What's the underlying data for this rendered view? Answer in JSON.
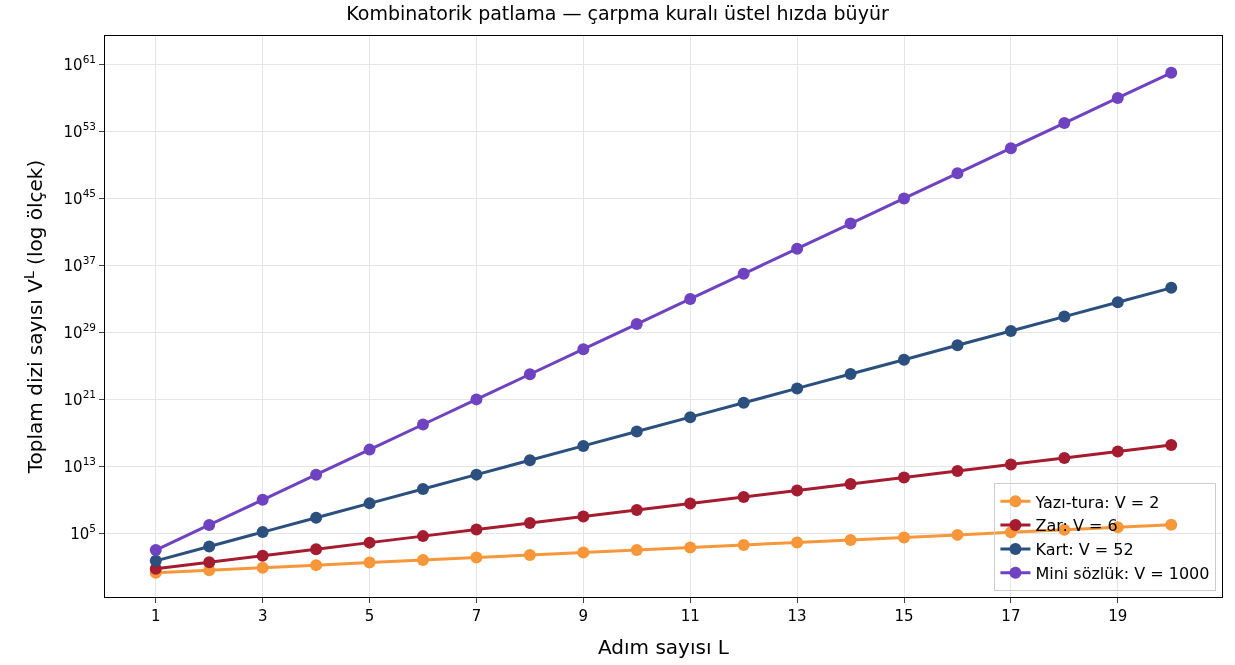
{
  "chart_data": {
    "type": "line",
    "title": "Kombinatorik patlama — çarpma kuralı üstel hızda büyür",
    "xlabel": "Adım sayısı L",
    "ylabel": "Toplam dizi sayısı V$^{L}$ (log ölçek)",
    "x": [
      1,
      2,
      3,
      4,
      5,
      6,
      7,
      8,
      9,
      10,
      11,
      12,
      13,
      14,
      15,
      16,
      17,
      18,
      19,
      20
    ],
    "series": [
      {
        "name": "Yazı-tura: V = 2",
        "color": "#f7973a",
        "values": [
          2,
          4,
          8,
          16,
          32,
          64,
          128,
          256,
          512,
          1024,
          2048,
          4096,
          8192,
          16384,
          32768,
          65536,
          131072,
          262144,
          524288,
          1048576
        ]
      },
      {
        "name": "Zar: V = 6",
        "color": "#a51c30",
        "values": [
          6,
          36,
          216,
          1296,
          7776,
          46656,
          279936,
          1679616,
          10077696,
          60466176,
          362797056,
          2176782336,
          13060694016,
          78364164096,
          470184984576,
          2821109907456,
          16926659444736,
          101559956668416,
          609359740010496,
          3656158440062976
        ]
      },
      {
        "name": "Kart: V = 52",
        "color": "#2b5080",
        "values": [
          52,
          2704,
          140608,
          7311616,
          380204032,
          19770000000.0,
          1028000000000.0,
          53460000000000.0,
          2780000000000000.0,
          1.446e+17,
          7.517e+18,
          3.909e+20,
          2.033e+22,
          1.057e+24,
          5.496e+25,
          2.858e+27,
          1.486e+29,
          7.728e+30,
          4.019e+32,
          2.09e+34
        ]
      },
      {
        "name": "Mini sözlük: V = 1000",
        "color": "#6f42c1",
        "values": [
          1000.0,
          1000000.0,
          1000000000.0,
          1000000000000.0,
          1000000000000000.0,
          1e+18,
          1e+21,
          1e+24,
          1e+27,
          1e+30,
          1e+33,
          1e+36,
          1e+39,
          1e+42,
          1e+45,
          1e+48,
          1e+51,
          1e+54,
          1e+57,
          1e+60
        ]
      }
    ],
    "log": "y",
    "xlim": [
      0.05,
      20.95
    ],
    "ylim": [
      0.0025,
      2.5e+64
    ],
    "xticks": [
      1,
      3,
      5,
      7,
      9,
      11,
      13,
      15,
      17,
      19
    ],
    "yticks": [
      {
        "value": 100000.0,
        "label": "10$^{5}$"
      },
      {
        "value": 10000000000000.0,
        "label": "10$^{13}$"
      },
      {
        "value": 1e+21,
        "label": "10$^{21}$"
      },
      {
        "value": 1e+29,
        "label": "10$^{29}$"
      },
      {
        "value": 1e+37,
        "label": "10$^{37}$"
      },
      {
        "value": 1e+45,
        "label": "10$^{45}$"
      },
      {
        "value": 1e+53,
        "label": "10$^{53}$"
      },
      {
        "value": 1e+61,
        "label": "10$^{61}$"
      }
    ],
    "grid": true,
    "legend": "bottom right",
    "marker": "circle",
    "line_style": "solid"
  }
}
